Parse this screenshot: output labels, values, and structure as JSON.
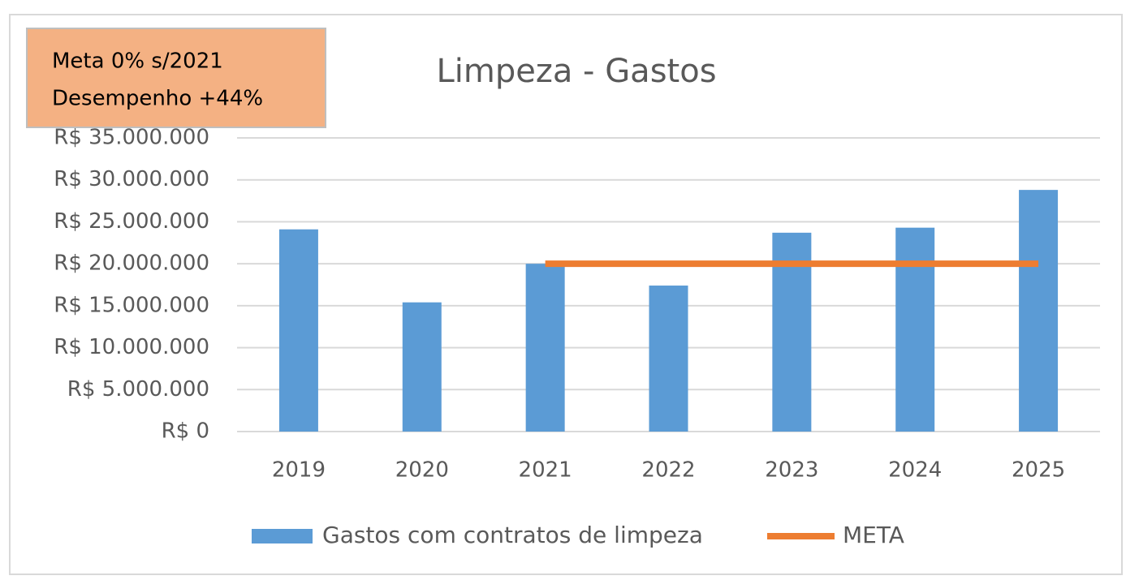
{
  "chart_data": {
    "type": "bar",
    "title": "Limpeza - Gastos",
    "annotations": [
      "Meta 0% s/2021",
      "Desempenho +44%"
    ],
    "categories": [
      "2019",
      "2020",
      "2021",
      "2022",
      "2023",
      "2024",
      "2025"
    ],
    "series": [
      {
        "name": "Gastos com contratos de limpeza",
        "type": "bar",
        "color": "#5b9bd5",
        "values": [
          24100000,
          15400000,
          20000000,
          17400000,
          23700000,
          24300000,
          28800000
        ]
      },
      {
        "name": "META",
        "type": "line",
        "color": "#ed7d31",
        "values": [
          null,
          null,
          20000000,
          20000000,
          20000000,
          20000000,
          20000000
        ]
      }
    ],
    "ylim": [
      0,
      35000000
    ],
    "yticks": [
      {
        "value": 0,
        "label": "R$ 0"
      },
      {
        "value": 5000000,
        "label": "R$ 5.000.000"
      },
      {
        "value": 10000000,
        "label": "R$ 10.000.000"
      },
      {
        "value": 15000000,
        "label": "R$ 15.000.000"
      },
      {
        "value": 20000000,
        "label": "R$ 20.000.000"
      },
      {
        "value": 25000000,
        "label": "R$ 25.000.000"
      },
      {
        "value": 30000000,
        "label": "R$ 30.000.000"
      },
      {
        "value": 35000000,
        "label": "R$ 35.000.000"
      }
    ],
    "grid": true,
    "legend": "bottom"
  }
}
